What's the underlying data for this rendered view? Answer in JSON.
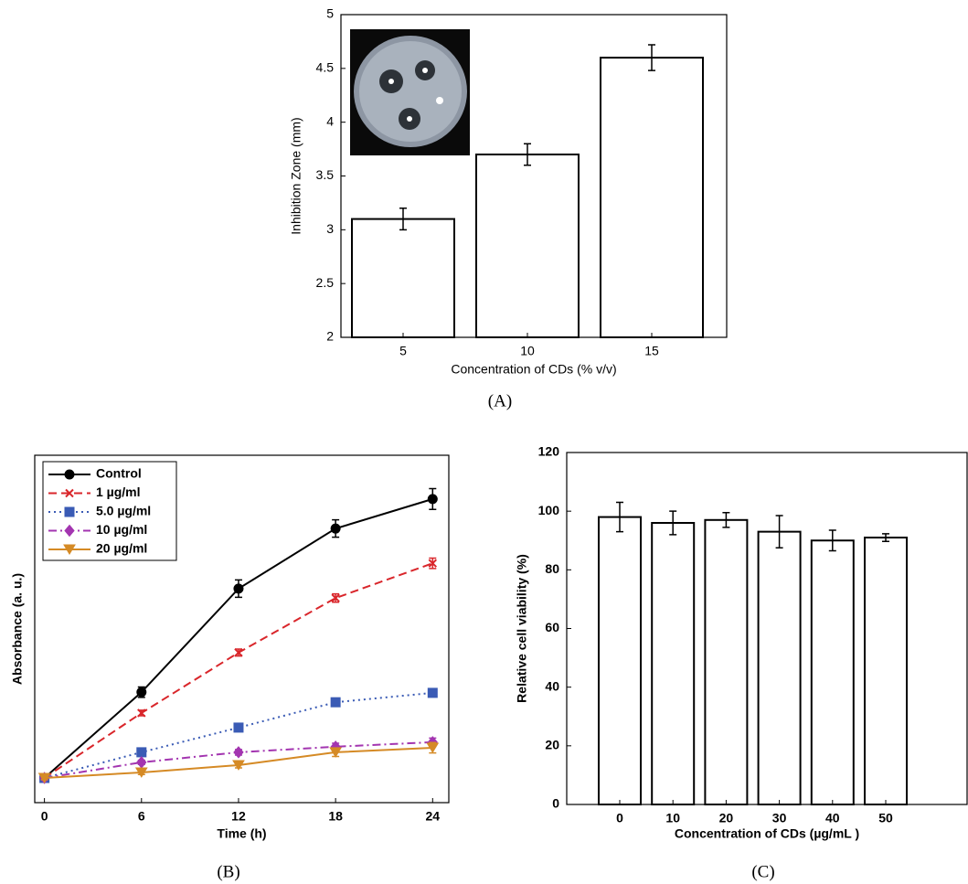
{
  "chart_data": [
    {
      "type": "bar",
      "panel_label": "(A)",
      "xlabel": "Concentration of CDs (% v/v)",
      "ylabel": "Inhibition Zone (mm)",
      "categories": [
        "5",
        "10",
        "15"
      ],
      "values": [
        3.1,
        3.7,
        4.6
      ],
      "errors": [
        0.1,
        0.1,
        0.12
      ],
      "color": "#ffffff",
      "ylim": [
        2,
        5
      ],
      "yticks": [
        2,
        2.5,
        3,
        3.5,
        4,
        4.5,
        5
      ]
    },
    {
      "type": "line",
      "panel_label": "(B)",
      "xlabel": "Time (h)",
      "ylabel": "Absorbance (a. u.)",
      "x": [
        0,
        6,
        12,
        18,
        24
      ],
      "xlim": [
        -0.6,
        25
      ],
      "xticks": [
        0,
        6,
        12,
        18,
        24
      ],
      "ylim": [
        0,
        1
      ],
      "legend": "upper left",
      "series": [
        {
          "name": "Control",
          "color": "#000000",
          "linestyle": "solid",
          "marker": "circle",
          "values": [
            0.071,
            0.318,
            0.616,
            0.789,
            0.874
          ],
          "errors": [
            0.01,
            0.015,
            0.025,
            0.025,
            0.03
          ]
        },
        {
          "name": "1 µg/ml",
          "color": "#d9262b",
          "linestyle": "dashed",
          "marker": "x",
          "values": [
            0.071,
            0.258,
            0.432,
            0.589,
            0.689
          ],
          "errors": [
            0.005,
            0.008,
            0.01,
            0.012,
            0.015
          ]
        },
        {
          "name": "5.0 µg/ml",
          "color": "#3a5bb5",
          "linestyle": "dotted",
          "marker": "square",
          "values": [
            0.071,
            0.145,
            0.216,
            0.289,
            0.316
          ],
          "errors": [
            0.005,
            0.006,
            0.006,
            0.008,
            0.008
          ]
        },
        {
          "name": "10 µg/ml",
          "color": "#a335b0",
          "linestyle": "dashdot",
          "marker": "diamond",
          "values": [
            0.071,
            0.116,
            0.145,
            0.161,
            0.174
          ],
          "errors": [
            0.005,
            0.006,
            0.008,
            0.01,
            0.012
          ]
        },
        {
          "name": "20 µg/ml",
          "color": "#d58a25",
          "linestyle": "solid",
          "marker": "triangle-down",
          "values": [
            0.071,
            0.087,
            0.108,
            0.145,
            0.158
          ],
          "errors": [
            0.005,
            0.006,
            0.008,
            0.012,
            0.015
          ]
        }
      ]
    },
    {
      "type": "bar",
      "panel_label": "(C)",
      "xlabel": "Concentration of CDs (µg/mL )",
      "ylabel": "Relative cell viability (%)",
      "categories": [
        "0",
        "10",
        "20",
        "30",
        "40",
        "50"
      ],
      "values": [
        98,
        96,
        97,
        93,
        90,
        91
      ],
      "errors": [
        5,
        4,
        2.5,
        5.5,
        3.5,
        1.3
      ],
      "color": "#ffffff",
      "ylim": [
        0,
        120
      ],
      "yticks": [
        0,
        20,
        40,
        60,
        80,
        100,
        120
      ]
    }
  ]
}
